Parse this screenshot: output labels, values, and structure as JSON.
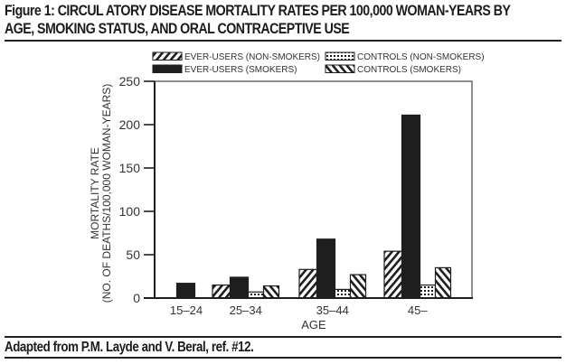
{
  "figure": {
    "title_line1": "Figure 1: CIRCUL ATORY DISEASE MORTALITY RATES PER 100,000 WOMAN-YEARS BY",
    "title_line2": "AGE, SMOKING STATUS, AND ORAL CONTRACEPTIVE USE",
    "caption": "Adapted from P.M. Layde and V. Beral, ref. #12."
  },
  "chart_data": {
    "type": "bar",
    "title": "Circulatory disease mortality rates per 100,000 woman-years by age, smoking status, and oral contraceptive use",
    "xlabel": "AGE",
    "ylabel_line1": "MORTALITY RATE",
    "ylabel_line2": "(NO. OF DEATHS/100,000 WOMAN-YEARS)",
    "ylim": [
      0,
      250
    ],
    "yticks": [
      0,
      50,
      100,
      150,
      200,
      250
    ],
    "categories": [
      "15–24",
      "25–34",
      "35–44",
      "45–"
    ],
    "legend_position": "top",
    "grid": false,
    "series": [
      {
        "name": "EVER-USERS (NON-SMOKERS)",
        "pattern": "diagonal-forward",
        "values": [
          null,
          15,
          33,
          54
        ]
      },
      {
        "name": "EVER-USERS (SMOKERS)",
        "pattern": "solid",
        "values": [
          17,
          24,
          68,
          211
        ]
      },
      {
        "name": "CONTROLS (NON-SMOKERS)",
        "pattern": "dotted",
        "values": [
          null,
          7,
          10,
          15
        ]
      },
      {
        "name": "CONTROLS (SMOKERS)",
        "pattern": "diagonal-backward",
        "values": [
          null,
          14,
          27,
          35
        ]
      }
    ],
    "colors": {
      "ink": "#1e1e1e",
      "background": "#ffffff"
    }
  }
}
